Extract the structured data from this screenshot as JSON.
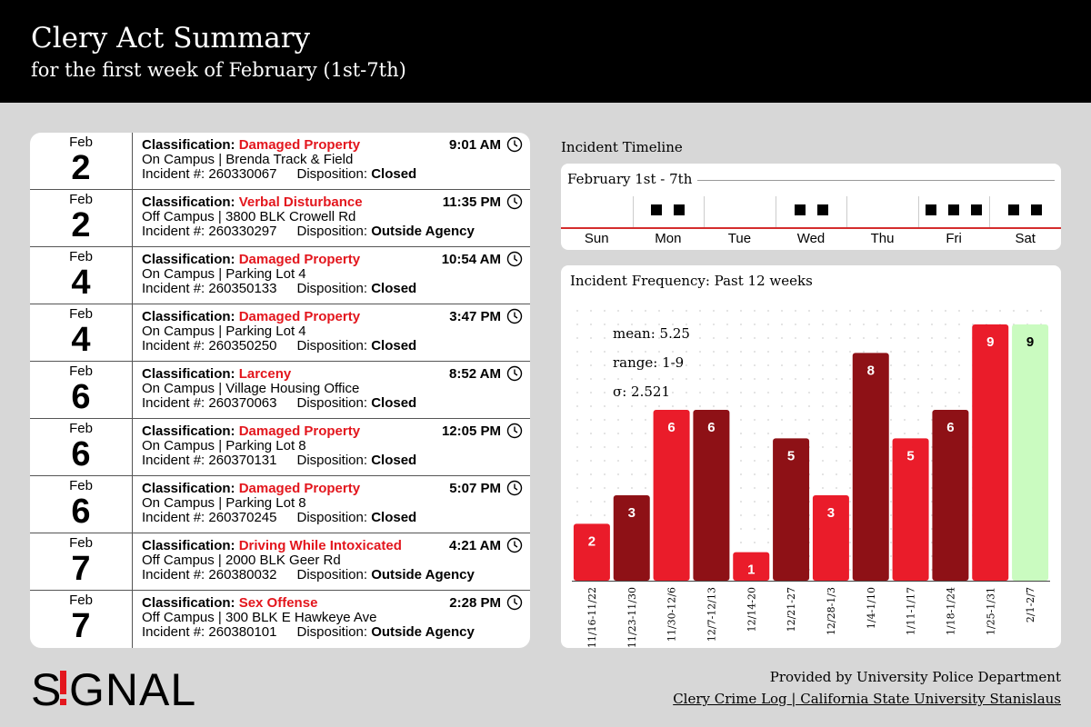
{
  "header": {
    "title": "Clery Act Summary",
    "subtitle": "for the first week of February (1st-7th)"
  },
  "labels": {
    "classification": "Classification: ",
    "incident": "Incident #: ",
    "disposition": "Disposition: "
  },
  "incidents": [
    {
      "month": "Feb",
      "day": "2",
      "classification": "Damaged Property",
      "time": "9:01 AM",
      "location": "On Campus | Brenda Track & Field",
      "number": "260330067",
      "disposition": "Closed"
    },
    {
      "month": "Feb",
      "day": "2",
      "classification": "Verbal Disturbance",
      "time": "11:35 PM",
      "location": "Off Campus | 3800 BLK Crowell Rd",
      "number": "260330297",
      "disposition": "Outside Agency"
    },
    {
      "month": "Feb",
      "day": "4",
      "classification": "Damaged Property",
      "time": "10:54 AM",
      "location": "On Campus | Parking Lot 4",
      "number": "260350133",
      "disposition": "Closed"
    },
    {
      "month": "Feb",
      "day": "4",
      "classification": "Damaged Property",
      "time": "3:47 PM",
      "location": "On Campus | Parking Lot 4",
      "number": "260350250",
      "disposition": "Closed"
    },
    {
      "month": "Feb",
      "day": "6",
      "classification": "Larceny",
      "time": "8:52 AM",
      "location": "On Campus | Village Housing Office",
      "number": "260370063",
      "disposition": "Closed"
    },
    {
      "month": "Feb",
      "day": "6",
      "classification": "Damaged Property",
      "time": "12:05 PM",
      "location": "On Campus | Parking Lot 8",
      "number": "260370131",
      "disposition": "Closed"
    },
    {
      "month": "Feb",
      "day": "6",
      "classification": "Damaged Property",
      "time": "5:07 PM",
      "location": "On Campus | Parking Lot 8",
      "number": "260370245",
      "disposition": "Closed"
    },
    {
      "month": "Feb",
      "day": "7",
      "classification": "Driving While Intoxicated",
      "time": "4:21 AM",
      "location": "Off Campus | 2000 BLK Geer Rd",
      "number": "260380032",
      "disposition": "Outside Agency"
    },
    {
      "month": "Feb",
      "day": "7",
      "classification": "Sex Offense",
      "time": "2:28 PM",
      "location": "Off Campus | 300 BLK E Hawkeye Ave",
      "number": "260380101",
      "disposition": "Outside Agency"
    }
  ],
  "timeline": {
    "title": "Incident Timeline",
    "subtitle": "February 1st - 7th",
    "days": [
      {
        "label": "Sun",
        "count": 0
      },
      {
        "label": "Mon",
        "count": 2
      },
      {
        "label": "Tue",
        "count": 0
      },
      {
        "label": "Wed",
        "count": 2
      },
      {
        "label": "Thu",
        "count": 0
      },
      {
        "label": "Fri",
        "count": 3
      },
      {
        "label": "Sat",
        "count": 2
      }
    ]
  },
  "chart_data": {
    "type": "bar",
    "title": "Incident Frequency: Past 12 weeks",
    "categories": [
      "11/16-11/22",
      "11/23-11/30",
      "11/30-12/6",
      "12/7-12/13",
      "12/14-20",
      "12/21-27",
      "12/28-1/3",
      "1/4-1/10",
      "1/11-1/17",
      "1/18-1/24",
      "1/25-1/31",
      "2/1-2/7"
    ],
    "values": [
      2,
      3,
      6,
      6,
      1,
      5,
      3,
      8,
      5,
      6,
      9,
      9
    ],
    "ylim": [
      0,
      9
    ],
    "grid": true,
    "stats": {
      "mean": "mean: 5.25",
      "range": "range: 1-9",
      "sigma": "σ: 2.521"
    },
    "colors": [
      "#ea1c2a",
      "#8e1116",
      "#ea1c2a",
      "#8e1116",
      "#ea1c2a",
      "#8e1116",
      "#ea1c2a",
      "#8e1116",
      "#ea1c2a",
      "#8e1116",
      "#ea1c2a",
      "#cafbc0"
    ]
  },
  "footer": {
    "line1": "Provided by University Police Department",
    "line2": "Clery Crime Log | California State University Stanislaus"
  },
  "logo": {
    "text": "SIGNAL"
  }
}
